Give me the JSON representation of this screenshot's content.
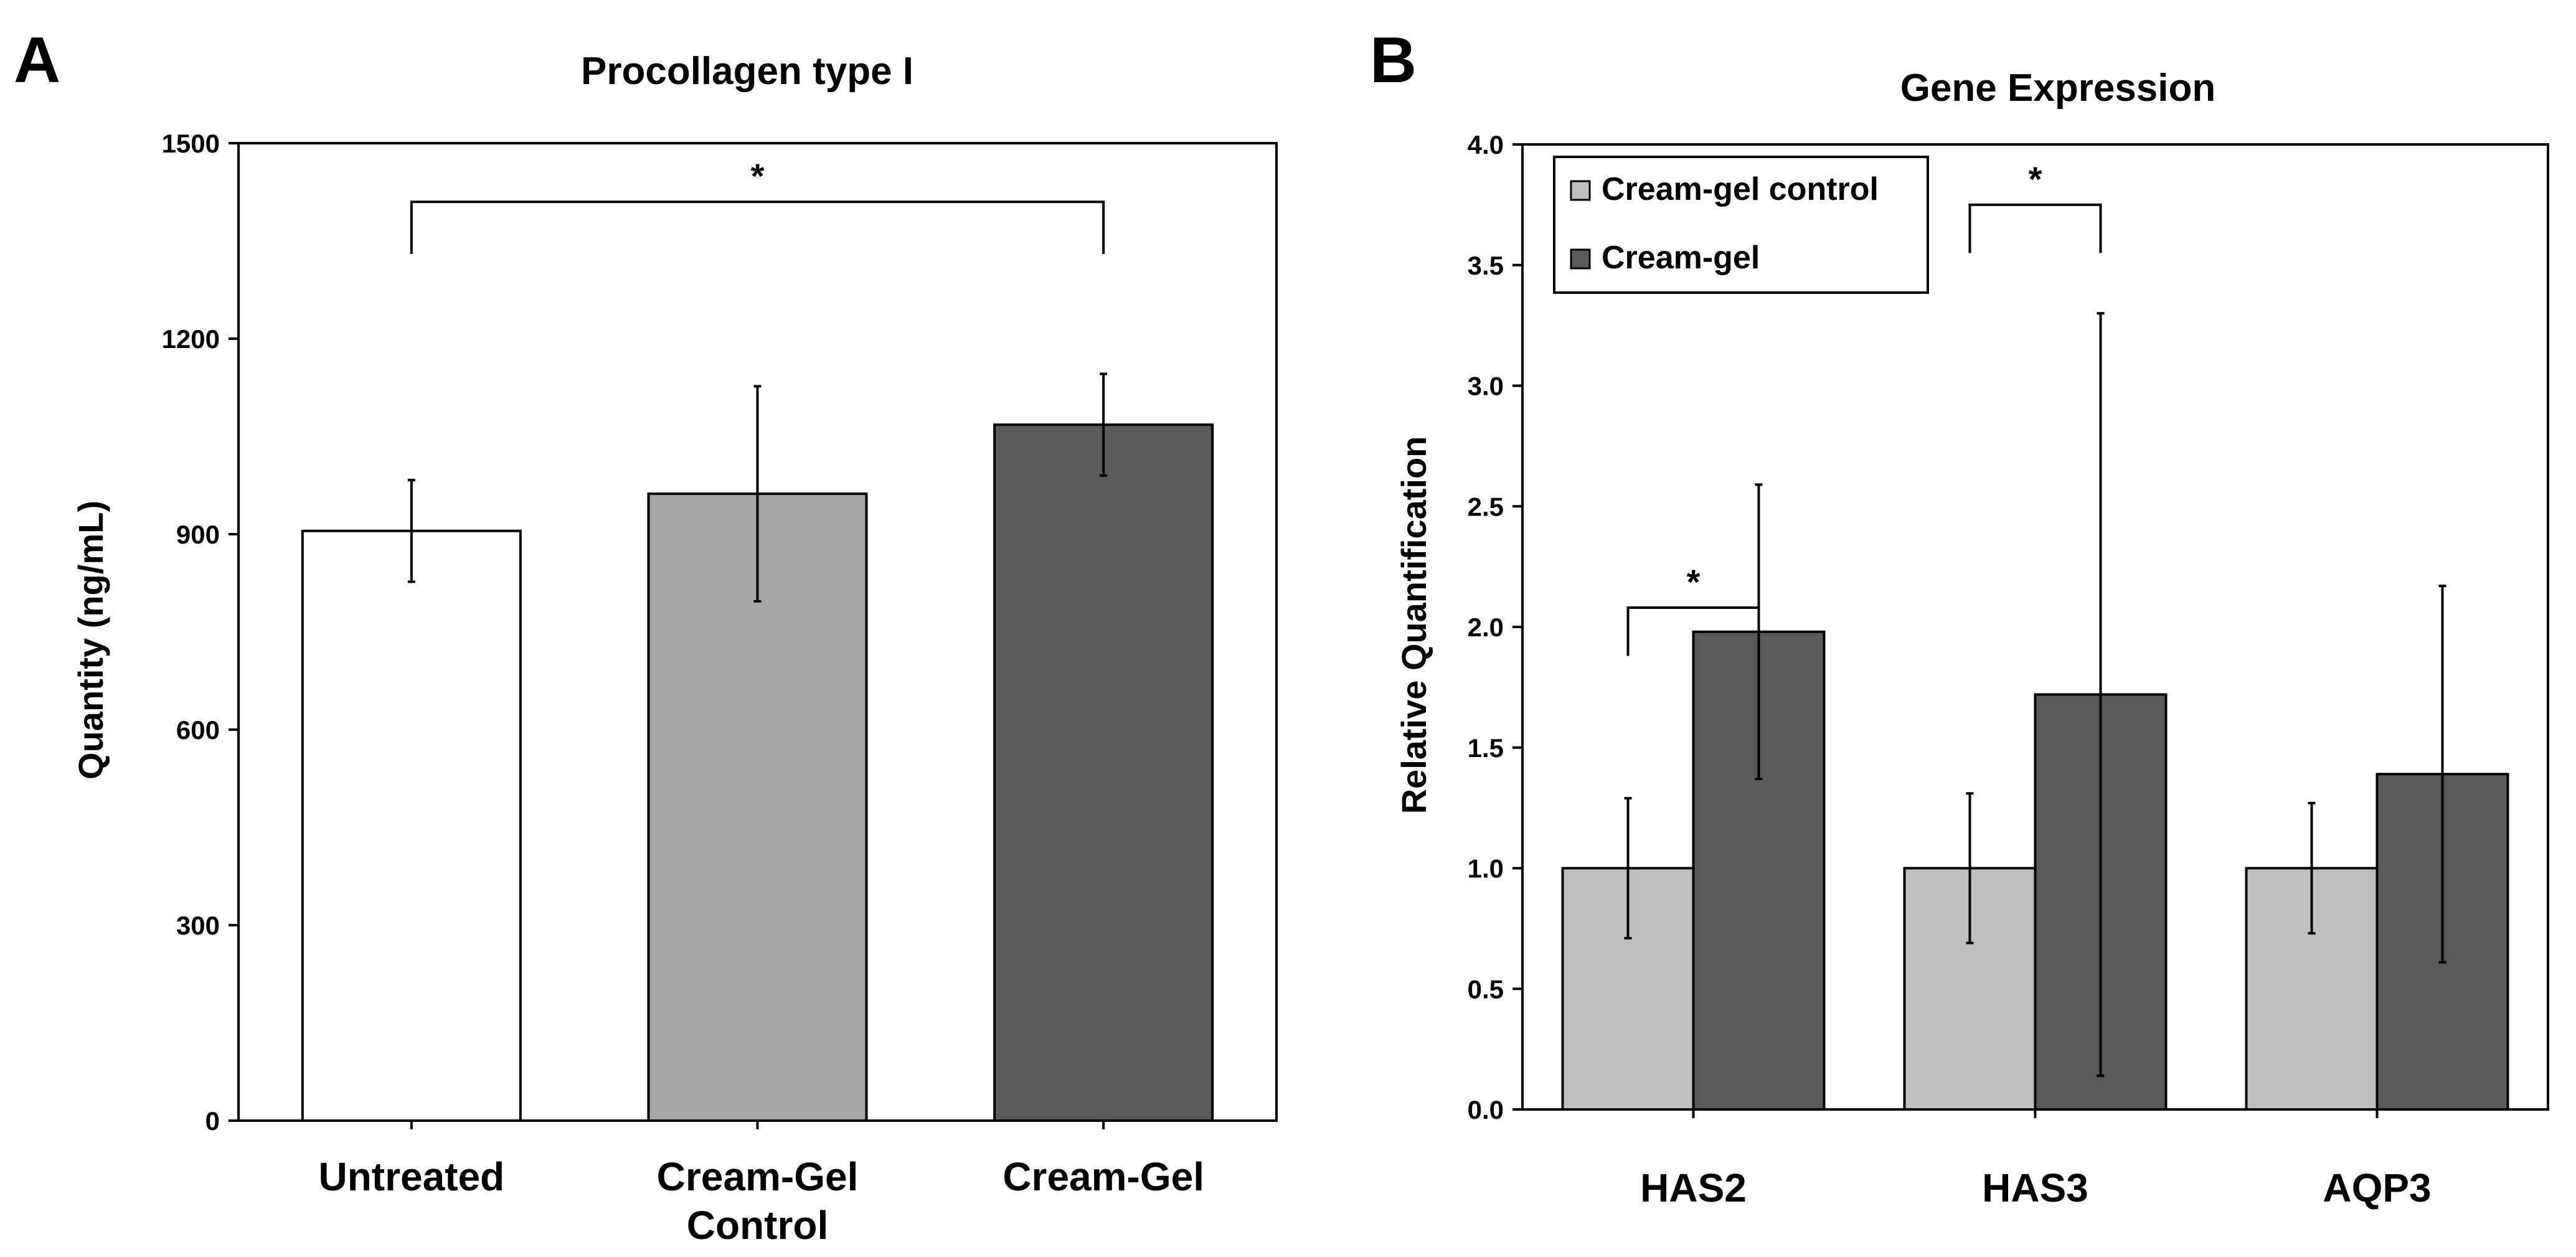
{
  "figure": {
    "panel_a_letter": "A",
    "panel_b_letter": "B"
  },
  "chart_data": [
    {
      "type": "bar",
      "title": "Procollagen type I",
      "xlabel": "",
      "ylabel": "Quantity (ng/mL)",
      "ylim": [
        0,
        1500
      ],
      "yticks": [
        0,
        300,
        600,
        900,
        1200,
        1500
      ],
      "grid": false,
      "categories": [
        "Untreated",
        "Cream-Gel Control",
        "Cream-Gel"
      ],
      "category_lines": [
        [
          "Untreated"
        ],
        [
          "Cream-Gel",
          "Control"
        ],
        [
          "Cream-Gel"
        ]
      ],
      "values": [
        905,
        962,
        1068
      ],
      "errors": [
        78,
        165,
        78
      ],
      "colors": [
        "#ffffff",
        "#a6a6a6",
        "#595959"
      ],
      "annotations": [
        {
          "type": "significance",
          "from": "Untreated",
          "to": "Cream-Gel",
          "y": 1330,
          "label": "*"
        }
      ]
    },
    {
      "type": "bar",
      "title": "Gene Expression",
      "xlabel": "",
      "ylabel": "Relative Quantification",
      "ylim": [
        0,
        4
      ],
      "yticks": [
        "0.0",
        "0.5",
        "1.0",
        "1.5",
        "2.0",
        "2.5",
        "3.0",
        "3.5",
        "4.0"
      ],
      "grid": false,
      "legend_position": "top-left",
      "categories": [
        "HAS2",
        "HAS3",
        "AQP3"
      ],
      "series": [
        {
          "name": "Cream-gel control",
          "color": "#bfbfbf",
          "values": [
            1.0,
            1.0,
            1.0
          ],
          "errors": [
            0.29,
            0.31,
            0.27
          ]
        },
        {
          "name": "Cream-gel",
          "color": "#595959",
          "values": [
            1.98,
            1.72,
            1.39
          ],
          "errors": [
            0.61,
            1.58,
            0.78
          ]
        }
      ],
      "annotations": [
        {
          "type": "significance",
          "category": "HAS2",
          "y": 1.88,
          "label": "*"
        },
        {
          "type": "significance",
          "category": "HAS3",
          "y": 3.55,
          "label": "*"
        }
      ]
    }
  ]
}
